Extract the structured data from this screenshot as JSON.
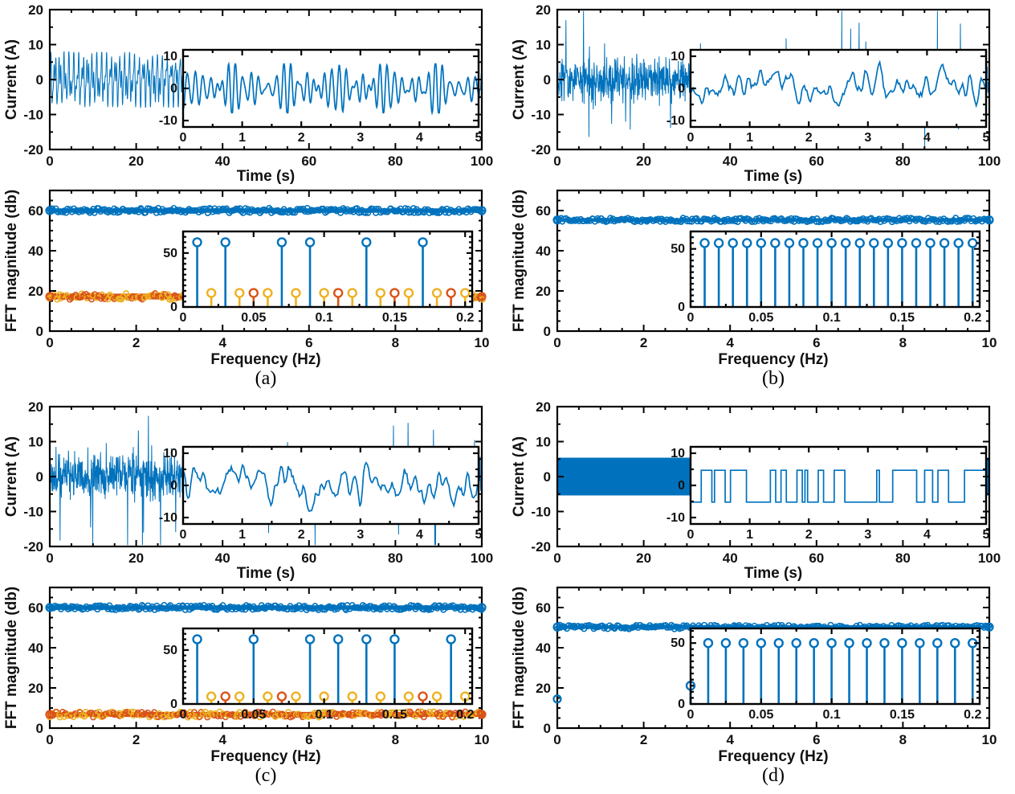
{
  "figure": {
    "background": "#ffffff",
    "colors": {
      "blue": "#0072BD",
      "orange": "#D95319",
      "yellow": "#EDB120",
      "axis": "#000000",
      "text": "#111111"
    }
  },
  "chart_data": [
    {
      "id": "a",
      "caption": "(a)",
      "time_plot": {
        "type": "line",
        "xlabel": "Time (s)",
        "ylabel": "Current (A)",
        "xlim": [
          0,
          100
        ],
        "ylim": [
          -20,
          20
        ],
        "xticks": [
          0,
          20,
          40,
          60,
          80,
          100
        ],
        "yticks": [
          -20,
          -10,
          0,
          10,
          20
        ],
        "signal": {
          "kind": "multitone",
          "amplitude": 7.9,
          "freqs": [
            0.93,
            1.71,
            2.63
          ],
          "seed": 101
        },
        "inset": {
          "xlim": [
            0,
            5
          ],
          "ylim": [
            -12,
            12
          ],
          "xticks": [
            0,
            1,
            2,
            3,
            4,
            5
          ],
          "yticks": [
            10,
            0,
            -10
          ],
          "signal": {
            "kind": "multitone",
            "amplitude": 7.6,
            "freqs": [
              7.4,
              8.6,
              9.7,
              10.6
            ],
            "seed": 102
          }
        }
      },
      "fft_plot": {
        "type": "stem-band",
        "xlabel": "Frequency (Hz)",
        "ylabel": "FFT magnitude (db)",
        "xlim": [
          0,
          10
        ],
        "ylim": [
          0,
          70
        ],
        "xticks": [
          0,
          2,
          4,
          6,
          8,
          10
        ],
        "yticks": [
          0,
          20,
          40,
          60
        ],
        "bands": [
          {
            "y": 60,
            "thickness": 2.4,
            "palette": [
              "blue"
            ]
          },
          {
            "y": 17.2,
            "thickness": 3.2,
            "palette": [
              "orange",
              "yellow"
            ]
          }
        ],
        "points": [],
        "inset": {
          "xlim": [
            0,
            0.205
          ],
          "ylim": [
            0,
            70
          ],
          "xticks": [
            0,
            0.05,
            0.1,
            0.15,
            0.2
          ],
          "yticks": [
            0,
            50
          ],
          "stems": [
            {
              "color": "blue",
              "height": 60,
              "x": [
                0.01,
                0.03,
                0.07,
                0.09,
                0.13,
                0.17
              ]
            },
            {
              "color": "yellow",
              "height": 13,
              "x": [
                0.02,
                0.04,
                0.06,
                0.08,
                0.1,
                0.12,
                0.14,
                0.16,
                0.18,
                0.2
              ]
            },
            {
              "color": "orange",
              "height": 13,
              "x": [
                0.05,
                0.11,
                0.15,
                0.19
              ]
            }
          ]
        }
      }
    },
    {
      "id": "b",
      "caption": "(b)",
      "time_plot": {
        "type": "line",
        "xlabel": "Time (s)",
        "ylabel": "Current (A)",
        "xlim": [
          0,
          100
        ],
        "ylim": [
          -20,
          20
        ],
        "xticks": [
          0,
          20,
          40,
          60,
          80,
          100
        ],
        "yticks": [
          -20,
          -10,
          0,
          10,
          20
        ],
        "signal": {
          "kind": "noise",
          "sigma": 4.6,
          "spike_rate": 0.015,
          "spike_max": 18.5,
          "seed": 201
        },
        "inset": {
          "xlim": [
            0,
            5
          ],
          "ylim": [
            -12,
            12
          ],
          "xticks": [
            0,
            1,
            2,
            3,
            4,
            5
          ],
          "yticks": [
            10,
            0,
            -10
          ],
          "signal": {
            "kind": "smooth-noise",
            "amplitude": 9,
            "seed": 202
          }
        }
      },
      "fft_plot": {
        "type": "stem-band",
        "xlabel": "Frequency (Hz)",
        "ylabel": "FFT magnitude (db)",
        "xlim": [
          0,
          10
        ],
        "ylim": [
          0,
          70
        ],
        "xticks": [
          0,
          2,
          4,
          6,
          8,
          10
        ],
        "yticks": [
          0,
          20,
          40,
          60
        ],
        "bands": [
          {
            "y": 55.3,
            "thickness": 2.0,
            "palette": [
              "blue"
            ]
          }
        ],
        "points": [],
        "inset": {
          "xlim": [
            0,
            0.205
          ],
          "ylim": [
            0,
            65
          ],
          "xticks": [
            0,
            0.05,
            0.1,
            0.15,
            0.2
          ],
          "yticks": [
            0,
            50
          ],
          "stems": [
            {
              "color": "blue",
              "height": 55,
              "x": [
                0.01,
                0.02,
                0.03,
                0.04,
                0.05,
                0.06,
                0.07,
                0.08,
                0.09,
                0.1,
                0.11,
                0.12,
                0.13,
                0.14,
                0.15,
                0.16,
                0.17,
                0.18,
                0.19,
                0.2
              ]
            }
          ]
        }
      }
    },
    {
      "id": "c",
      "caption": "(c)",
      "time_plot": {
        "type": "line",
        "xlabel": "Time (s)",
        "ylabel": "Current (A)",
        "xlim": [
          0,
          100
        ],
        "ylim": [
          -20,
          20
        ],
        "xticks": [
          0,
          20,
          40,
          60,
          80,
          100
        ],
        "yticks": [
          -20,
          -10,
          0,
          10,
          20
        ],
        "signal": {
          "kind": "noise",
          "sigma": 4.9,
          "spike_rate": 0.013,
          "spike_max": 20,
          "seed": 301
        },
        "inset": {
          "xlim": [
            0,
            5
          ],
          "ylim": [
            -12,
            12
          ],
          "xticks": [
            0,
            1,
            2,
            3,
            4,
            5
          ],
          "yticks": [
            10,
            0,
            -10
          ],
          "signal": {
            "kind": "smooth-noise",
            "amplitude": 9,
            "seed": 302
          }
        }
      },
      "fft_plot": {
        "type": "stem-band",
        "xlabel": "Frequency (Hz)",
        "ylabel": "FFT magnitude (db)",
        "xlim": [
          0,
          10
        ],
        "ylim": [
          0,
          70
        ],
        "xticks": [
          0,
          2,
          4,
          6,
          8,
          10
        ],
        "yticks": [
          0,
          20,
          40,
          60
        ],
        "bands": [
          {
            "y": 60,
            "thickness": 2.4,
            "palette": [
              "blue"
            ]
          },
          {
            "y": 6.8,
            "thickness": 2.8,
            "palette": [
              "orange",
              "yellow"
            ]
          }
        ],
        "points": [],
        "inset": {
          "xlim": [
            0,
            0.205
          ],
          "ylim": [
            0,
            70
          ],
          "xticks": [
            0,
            0.05,
            0.1,
            0.15,
            0.2
          ],
          "yticks": [
            0,
            50
          ],
          "stems": [
            {
              "color": "blue",
              "height": 60,
              "x": [
                0.01,
                0.05,
                0.09,
                0.11,
                0.13,
                0.15,
                0.19
              ]
            },
            {
              "color": "yellow",
              "height": 7,
              "x": [
                0.02,
                0.04,
                0.06,
                0.08,
                0.1,
                0.12,
                0.14,
                0.16,
                0.18,
                0.2
              ]
            },
            {
              "color": "orange",
              "height": 7,
              "x": [
                0.03,
                0.07,
                0.17
              ]
            }
          ]
        }
      }
    },
    {
      "id": "d",
      "caption": "(d)",
      "time_plot": {
        "type": "line",
        "xlabel": "Time (s)",
        "ylabel": "Current (A)",
        "xlim": [
          0,
          100
        ],
        "ylim": [
          -20,
          20
        ],
        "xticks": [
          0,
          20,
          40,
          60,
          80,
          100
        ],
        "yticks": [
          -20,
          -10,
          0,
          10,
          20
        ],
        "signal": {
          "kind": "band",
          "amplitude": 5.4
        },
        "inset": {
          "xlim": [
            0,
            5
          ],
          "ylim": [
            -12,
            12
          ],
          "xticks": [
            0,
            1,
            2,
            3,
            4,
            5
          ],
          "yticks": [
            10,
            0,
            -10
          ],
          "signal": {
            "kind": "square",
            "high": 4.7,
            "low": -5.2,
            "seed": 402
          }
        }
      },
      "fft_plot": {
        "type": "stem-band",
        "xlabel": "Frequency (Hz)",
        "ylabel": "FFT magnitude (db)",
        "xlim": [
          0,
          10
        ],
        "ylim": [
          0,
          70
        ],
        "xticks": [
          0,
          2,
          4,
          6,
          8,
          10
        ],
        "yticks": [
          0,
          20,
          40,
          60
        ],
        "bands": [
          {
            "y": 50.3,
            "thickness": 2.0,
            "palette": [
              "blue"
            ]
          }
        ],
        "points": [
          {
            "x": 0,
            "y": 14.5
          }
        ],
        "inset": {
          "xlim": [
            0,
            0.205
          ],
          "ylim": [
            0,
            62
          ],
          "xticks": [
            0,
            0.05,
            0.1,
            0.15,
            0.2
          ],
          "yticks": [
            0,
            50
          ],
          "stems": [
            {
              "color": "blue",
              "height": 15,
              "x": [
                0
              ]
            },
            {
              "color": "blue",
              "height": 50,
              "x": [
                0.0125,
                0.025,
                0.0375,
                0.05,
                0.0625,
                0.075,
                0.0875,
                0.1,
                0.1125,
                0.125,
                0.1375,
                0.15,
                0.1625,
                0.175,
                0.1875,
                0.2
              ]
            }
          ]
        }
      }
    }
  ]
}
